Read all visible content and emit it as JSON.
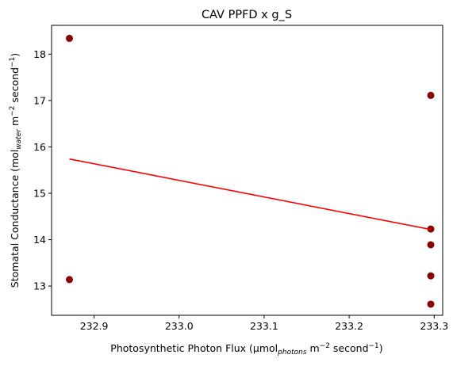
{
  "chart_data": {
    "type": "scatter",
    "title": "CAV PPFD x g_S",
    "xlabel": {
      "main": "Photosynthetic Photon Flux (µmol",
      "sub": "photons",
      "mid": " m",
      "sup1": "−2",
      "mid2": " second",
      "sup2": "−1",
      "end": ")"
    },
    "ylabel": {
      "main": "Stomatal Conductance (mol",
      "sub": "water",
      "mid": " m",
      "sup1": "−2",
      "mid2": " second",
      "sup2": "−1",
      "end": ")"
    },
    "xlim": [
      232.85,
      233.31
    ],
    "ylim": [
      12.37,
      18.62
    ],
    "x_ticks": [
      232.9,
      233.0,
      233.1,
      233.2,
      233.3
    ],
    "x_tick_labels": [
      "232.9",
      "233.0",
      "233.1",
      "233.2",
      "233.3"
    ],
    "y_ticks": [
      13,
      14,
      15,
      16,
      17,
      18
    ],
    "y_tick_labels": [
      "13",
      "14",
      "15",
      "16",
      "17",
      "18"
    ],
    "points": [
      {
        "x": 232.871,
        "y": 18.34
      },
      {
        "x": 232.871,
        "y": 13.14
      },
      {
        "x": 233.296,
        "y": 17.11
      },
      {
        "x": 233.296,
        "y": 14.23
      },
      {
        "x": 233.296,
        "y": 13.89
      },
      {
        "x": 233.296,
        "y": 13.22
      },
      {
        "x": 233.296,
        "y": 12.61
      }
    ],
    "trendline": {
      "x": [
        232.871,
        233.296
      ],
      "y": [
        15.74,
        14.22
      ]
    },
    "point_color": "#8b0000",
    "line_color": "#ff0000",
    "grid": false,
    "legend": "none"
  }
}
